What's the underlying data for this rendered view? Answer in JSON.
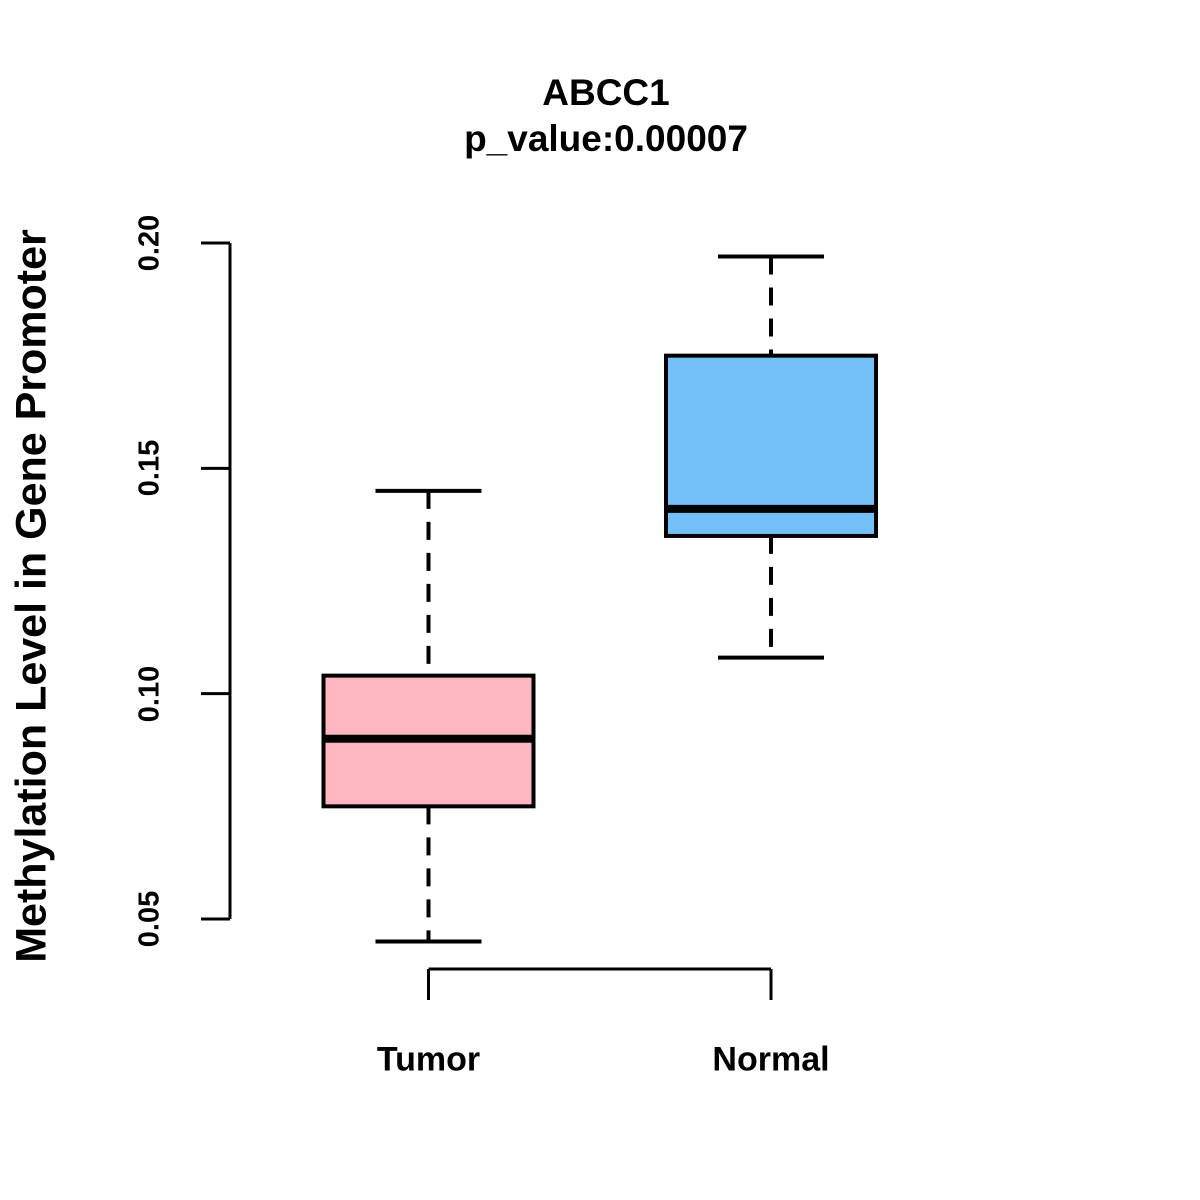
{
  "chart_data": {
    "type": "boxplot",
    "title": "ABCC1",
    "subtitle": "p_value:0.00007",
    "ylabel": "Methylation Level in Gene Promoter",
    "xlabel": "",
    "ylim": [
      0.05,
      0.2
    ],
    "yticks": [
      {
        "value": 0.05,
        "label": "0.05"
      },
      {
        "value": 0.1,
        "label": "0.10"
      },
      {
        "value": 0.15,
        "label": "0.15"
      },
      {
        "value": 0.2,
        "label": "0.20"
      }
    ],
    "grid": false,
    "legend": "none",
    "groups": [
      {
        "label": "Tumor",
        "color": "#FFB6C1",
        "whisker_low": 0.045,
        "q1": 0.075,
        "median": 0.09,
        "q3": 0.104,
        "whisker_high": 0.145
      },
      {
        "label": "Normal",
        "color": "#73BFF7",
        "whisker_low": 0.108,
        "q1": 0.135,
        "median": 0.141,
        "q3": 0.175,
        "whisker_high": 0.197
      }
    ],
    "colors": {
      "box_border": "#000000",
      "median_line": "#000000",
      "axis": "#000000",
      "background": "#ffffff"
    }
  }
}
